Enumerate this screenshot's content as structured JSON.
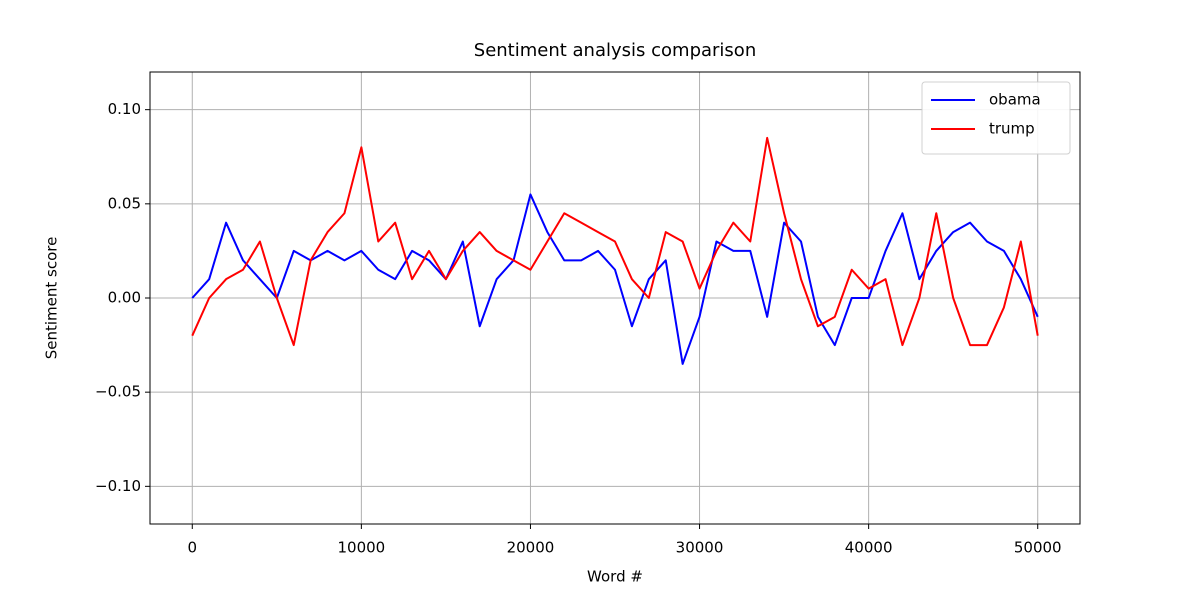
{
  "chart_data": {
    "type": "line",
    "title": "Sentiment analysis comparison",
    "x_label": "Word #",
    "y_label": "Sentiment score",
    "x": [
      0,
      1000,
      2000,
      3000,
      4000,
      5000,
      6000,
      7000,
      8000,
      9000,
      10000,
      11000,
      12000,
      13000,
      14000,
      15000,
      16000,
      17000,
      18000,
      19000,
      20000,
      21000,
      22000,
      23000,
      24000,
      25000,
      26000,
      27000,
      28000,
      29000,
      30000,
      31000,
      32000,
      33000,
      34000,
      35000,
      36000,
      37000,
      38000,
      39000,
      40000,
      41000,
      42000,
      43000,
      44000,
      45000,
      46000,
      47000,
      48000,
      49000,
      50000
    ],
    "series": [
      {
        "name": "obama",
        "color": "#0000ff",
        "values": [
          0.0,
          0.01,
          0.04,
          0.02,
          0.01,
          0.0,
          0.025,
          0.02,
          0.025,
          0.02,
          0.025,
          0.015,
          0.01,
          0.025,
          0.02,
          0.01,
          0.03,
          -0.015,
          0.01,
          0.02,
          0.055,
          0.035,
          0.02,
          0.02,
          0.025,
          0.015,
          -0.015,
          0.01,
          0.02,
          -0.035,
          -0.01,
          0.03,
          0.025,
          0.025,
          -0.01,
          0.04,
          0.03,
          -0.01,
          -0.025,
          0.0,
          0.0,
          0.025,
          0.045,
          0.01,
          0.025,
          0.035,
          0.04,
          0.03,
          0.025,
          0.01,
          -0.01
        ]
      },
      {
        "name": "trump",
        "color": "#ff0000",
        "values": [
          -0.02,
          0.0,
          0.01,
          0.015,
          0.03,
          0.0,
          -0.025,
          0.02,
          0.035,
          0.045,
          0.08,
          0.03,
          0.04,
          0.01,
          0.025,
          0.01,
          0.025,
          0.035,
          0.025,
          0.02,
          0.015,
          0.03,
          0.045,
          0.04,
          0.035,
          0.03,
          0.01,
          0.0,
          0.035,
          0.03,
          0.005,
          0.025,
          0.04,
          0.03,
          0.085,
          0.045,
          0.01,
          -0.015,
          -0.01,
          0.015,
          0.005,
          0.01,
          -0.025,
          0.0,
          0.045,
          0.0,
          -0.025,
          -0.025,
          -0.005,
          0.03,
          -0.02
        ]
      }
    ],
    "xlim": [
      -2500,
      52500
    ],
    "xticks": [
      0,
      10000,
      20000,
      30000,
      40000,
      50000
    ],
    "ylim": [
      -0.12,
      0.12
    ],
    "yticks": [
      {
        "value": -0.1,
        "label": "−0.10"
      },
      {
        "value": -0.05,
        "label": "−0.05"
      },
      {
        "value": 0,
        "label": "0.00"
      },
      {
        "value": 0.05,
        "label": "0.05"
      },
      {
        "value": 0.1,
        "label": "0.10"
      }
    ],
    "grid": true,
    "legend": "upper-right"
  }
}
